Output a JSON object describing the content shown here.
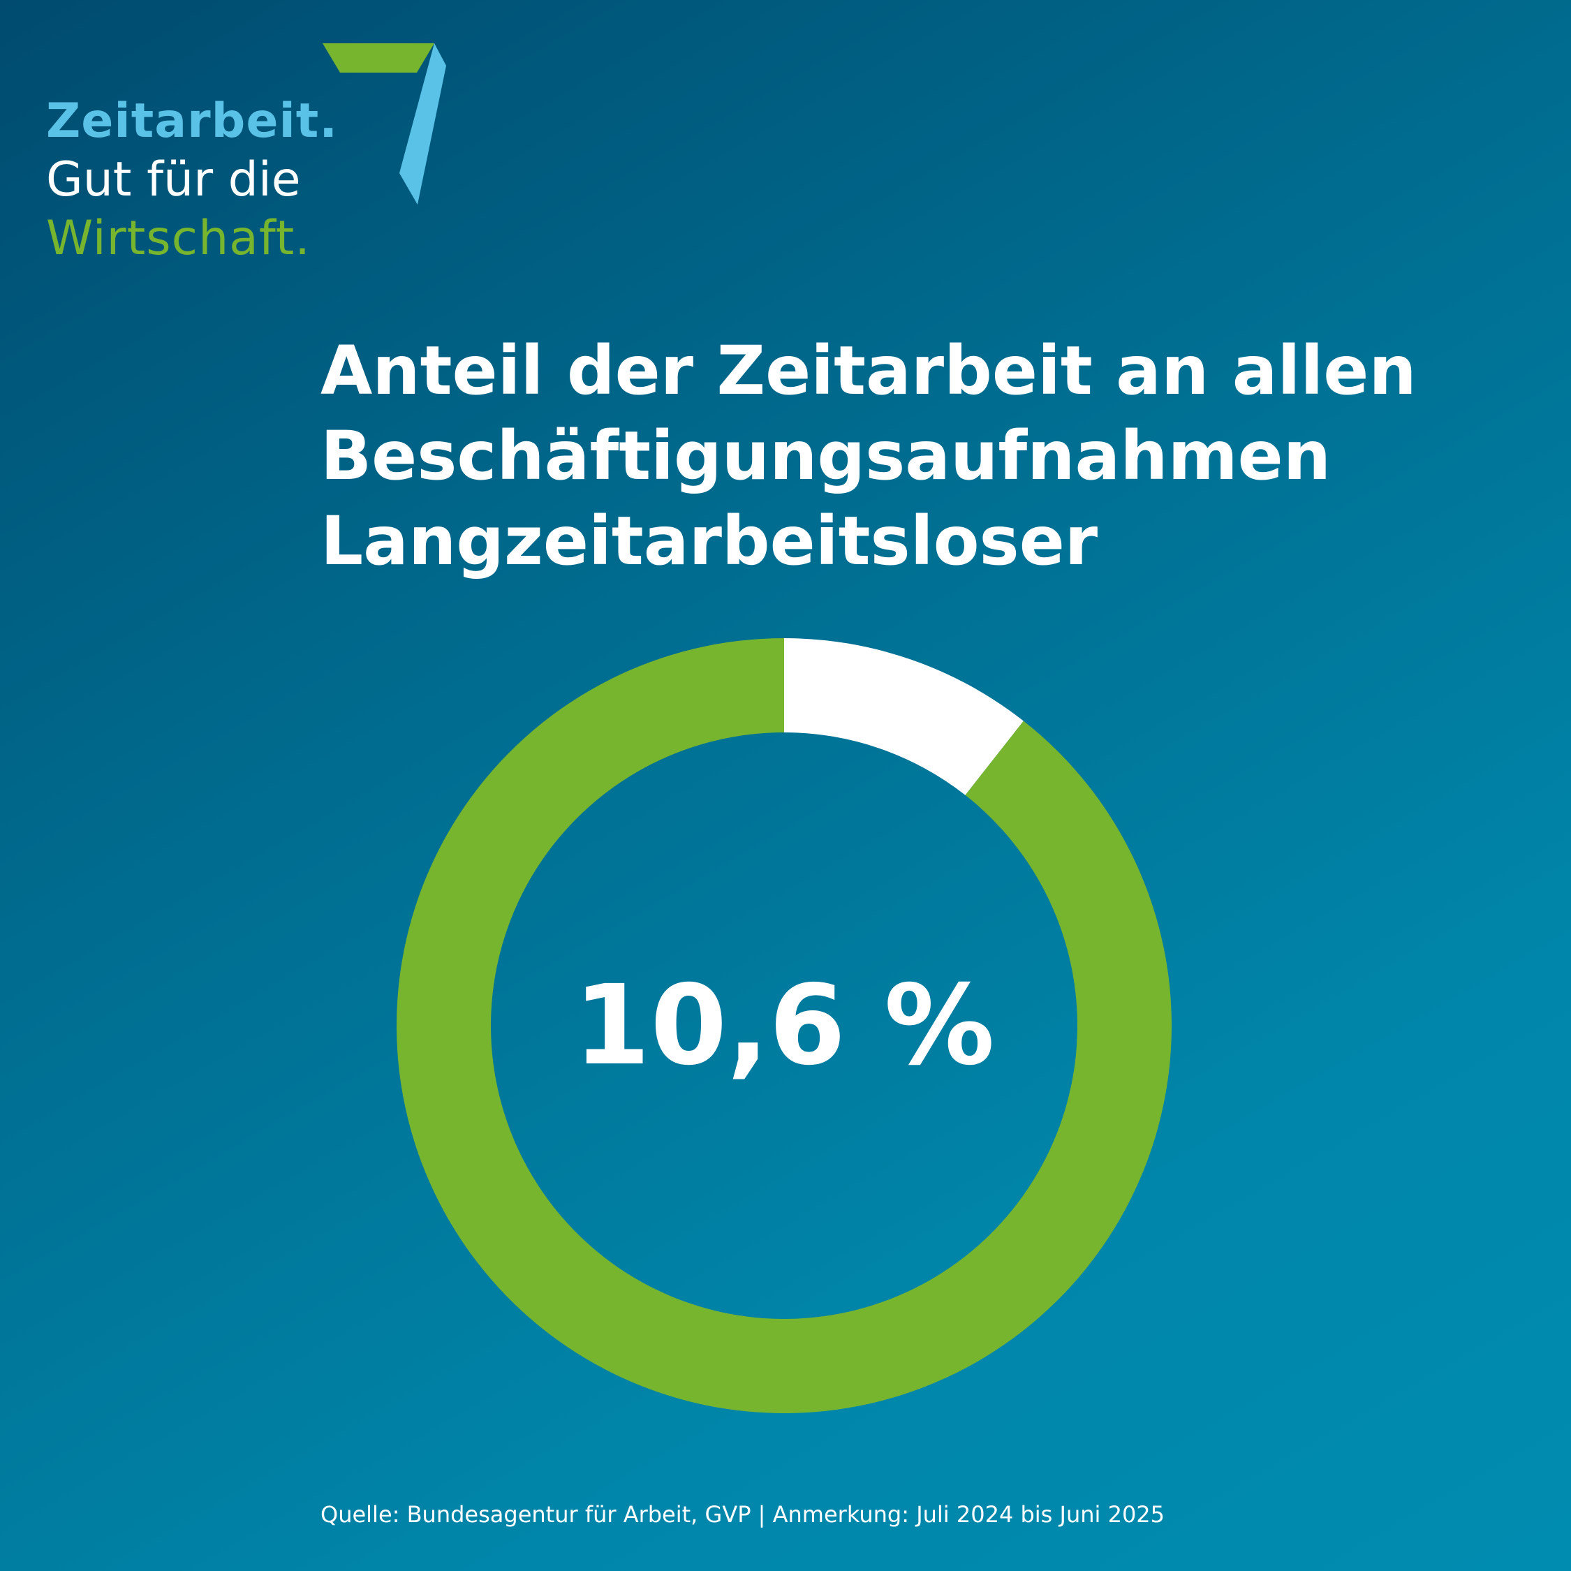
{
  "logo": {
    "line1": "Zeitarbeit.",
    "line2": "Gut für die",
    "line3": "Wirtschaft.",
    "colors": {
      "blue": "#5bc2e7",
      "white": "#ffffff",
      "green": "#77b52e"
    }
  },
  "title_lines": [
    "Anteil der Zeitarbeit an allen",
    "Beschäftigungsaufnahmen",
    "Langzeitarbeitsloser"
  ],
  "source": "Quelle: Bundesagentur für Arbeit, GVP | Anmerkung: Juli 2024 bis Juni 2025",
  "chart_data": {
    "type": "pie",
    "title": "Anteil der Zeitarbeit an allen Beschäftigungsaufnahmen Langzeitarbeitsloser",
    "center_label": "10,6 %",
    "slices": [
      {
        "value": 10.6,
        "color": "#ffffff"
      },
      {
        "value": 89.4,
        "color": "#77b52e"
      }
    ]
  }
}
